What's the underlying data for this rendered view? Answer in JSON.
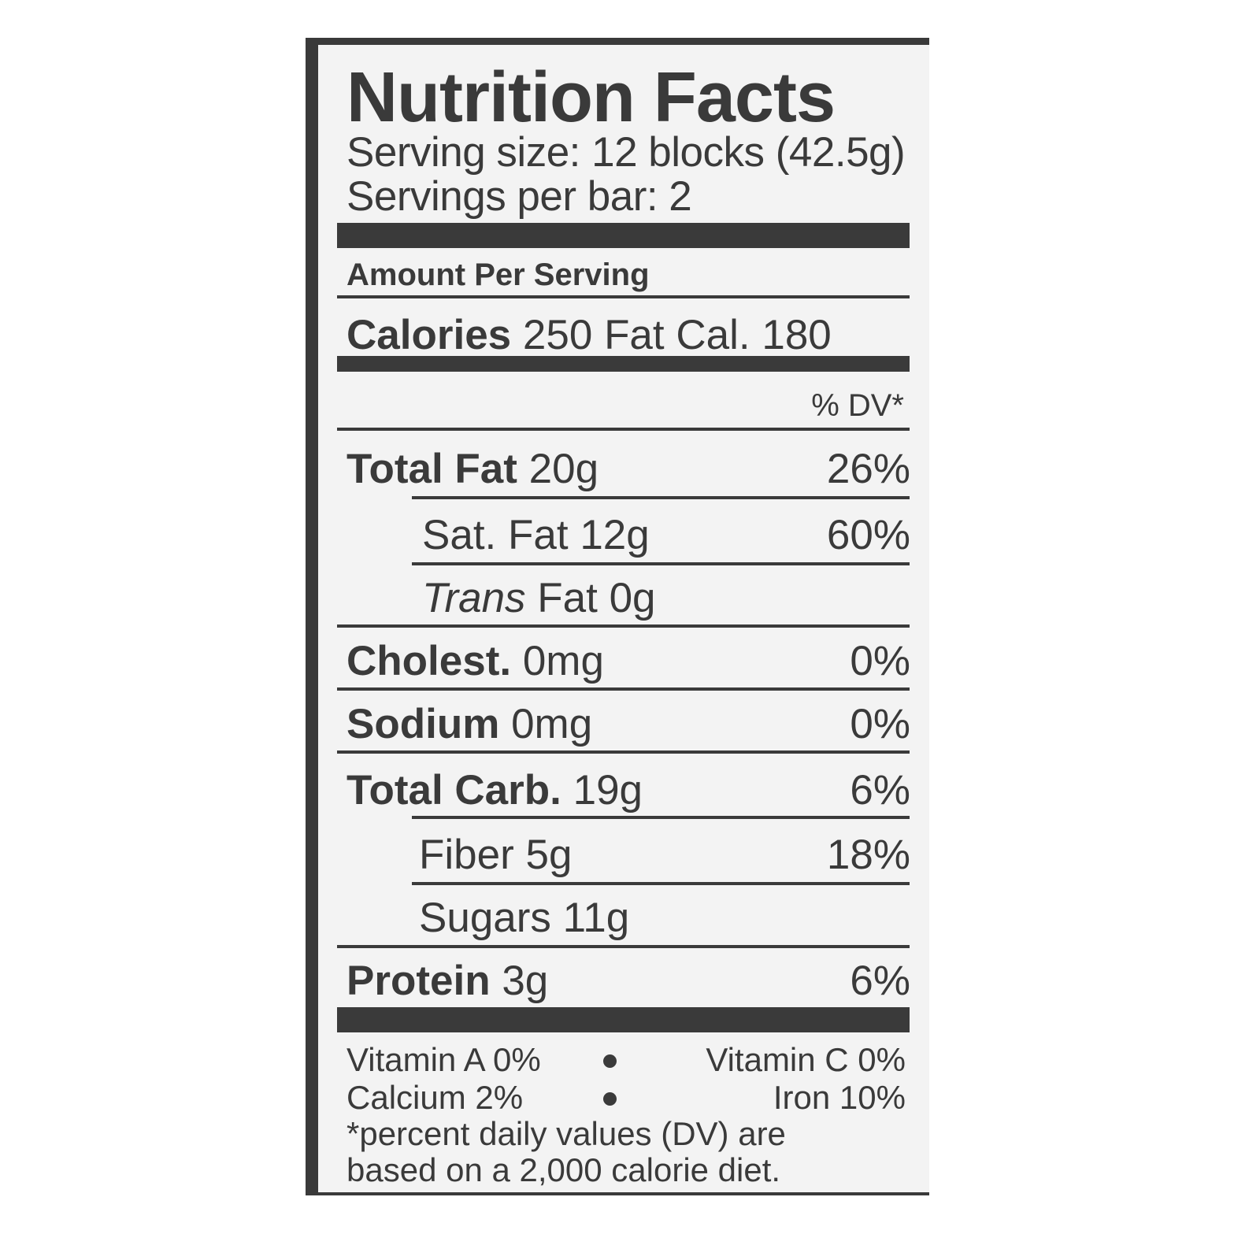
{
  "title": "Nutrition Facts",
  "serving_size": "Serving size: 12 blocks (42.5g)",
  "servings_per": "Servings per bar: 2",
  "amount_per_serving": "Amount Per Serving",
  "calories": {
    "label": "Calories",
    "value": "250",
    "fat_cal": "Fat Cal. 180"
  },
  "dv_header": "% DV*",
  "nutrients": [
    {
      "label": "Total Fat",
      "amount": "20g",
      "dv": "26%"
    },
    {
      "label": "Sat. Fat",
      "amount": "12g",
      "dv": "60%"
    },
    {
      "label": "Trans",
      "amount": "Fat 0g",
      "dv": ""
    },
    {
      "label": "Cholest.",
      "amount": "0mg",
      "dv": "0%"
    },
    {
      "label": "Sodium",
      "amount": "0mg",
      "dv": "0%"
    },
    {
      "label": "Total Carb.",
      "amount": "19g",
      "dv": "6%"
    },
    {
      "label": "Fiber",
      "amount": "5g",
      "dv": "18%"
    },
    {
      "label": "Sugars",
      "amount": "11g",
      "dv": ""
    },
    {
      "label": "Protein",
      "amount": "3g",
      "dv": "6%"
    }
  ],
  "vitamins": {
    "vitamin_a": "Vitamin A 0%",
    "vitamin_c": "Vitamin C 0%",
    "calcium": "Calcium 2%",
    "iron": "Iron 10%",
    "separator_icon": "bullet"
  },
  "footnote": [
    "*percent daily values (DV) are",
    "based on a 2,000 calorie diet."
  ]
}
